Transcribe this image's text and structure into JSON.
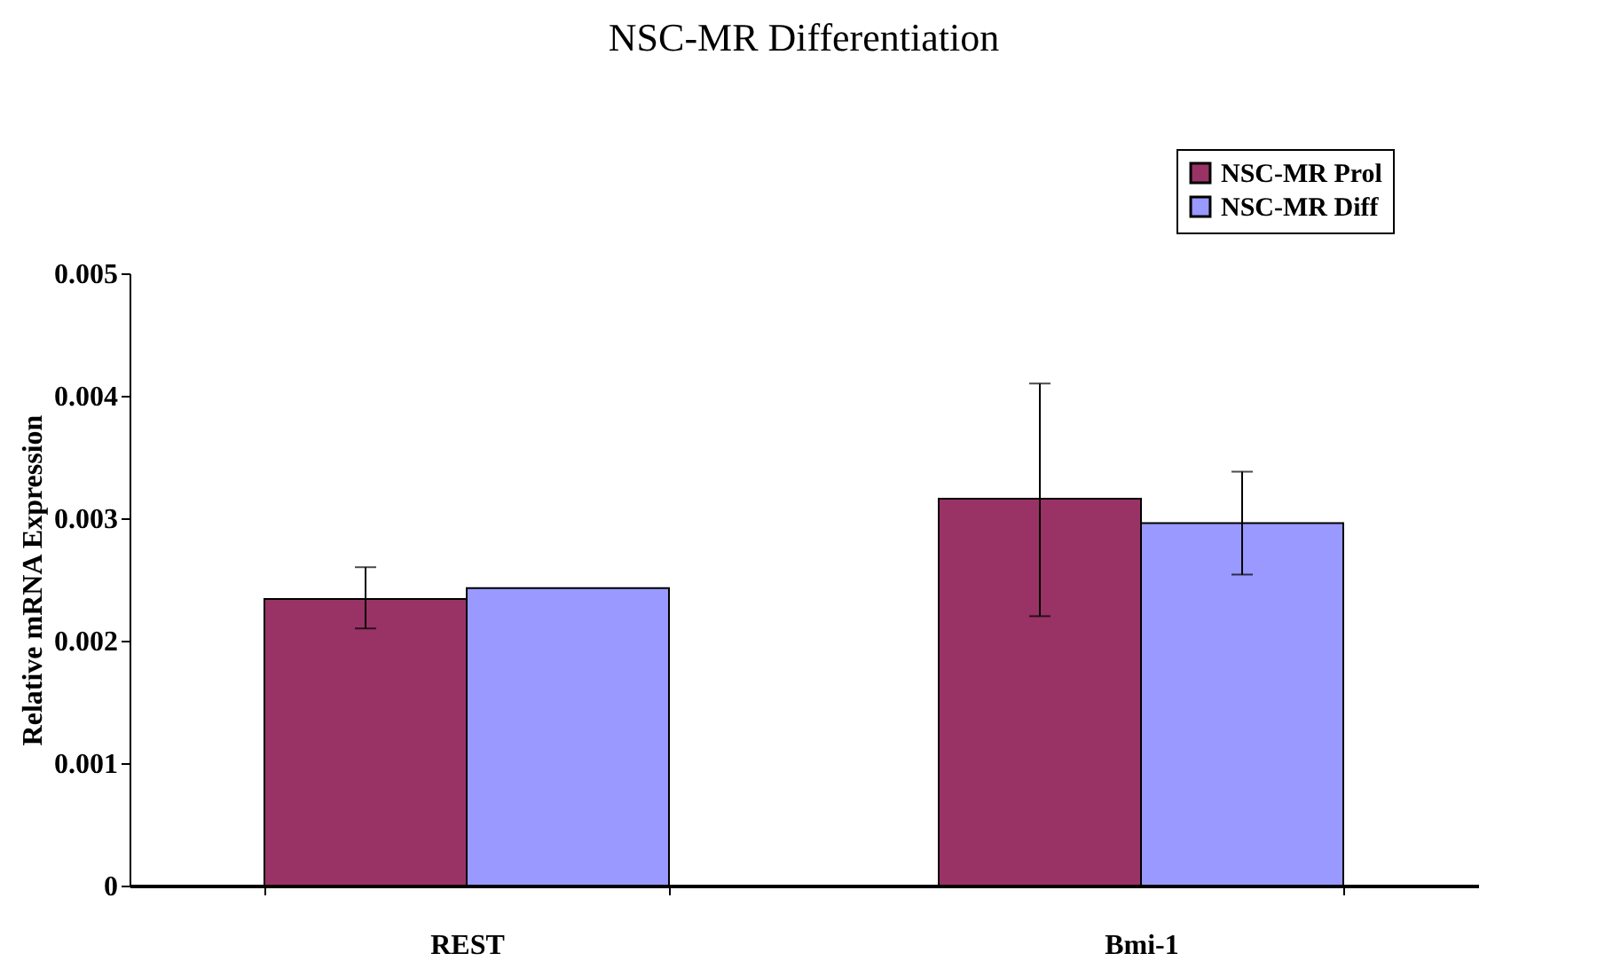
{
  "chart_data": {
    "type": "bar",
    "title": "NSC-MR Differentiation",
    "ylabel": "Relative mRNA Expression",
    "categories": [
      "REST",
      "Bmi-1"
    ],
    "series": [
      {
        "name": "NSC-MR Prol",
        "color": "#993366",
        "values": [
          0.00234,
          0.00316
        ],
        "errors": [
          [
            0.0021,
            0.0026
          ],
          [
            0.0022,
            0.0041
          ]
        ]
      },
      {
        "name": "NSC-MR Diff",
        "color": "#9999ff",
        "values": [
          0.00243,
          0.00296
        ],
        "errors": [
          null,
          [
            0.00254,
            0.00338
          ]
        ]
      }
    ],
    "ylim": [
      0,
      0.005
    ],
    "yticks": [
      0,
      0.001,
      0.002,
      0.003,
      0.004,
      0.005
    ],
    "grid": false,
    "legend": "top right"
  }
}
